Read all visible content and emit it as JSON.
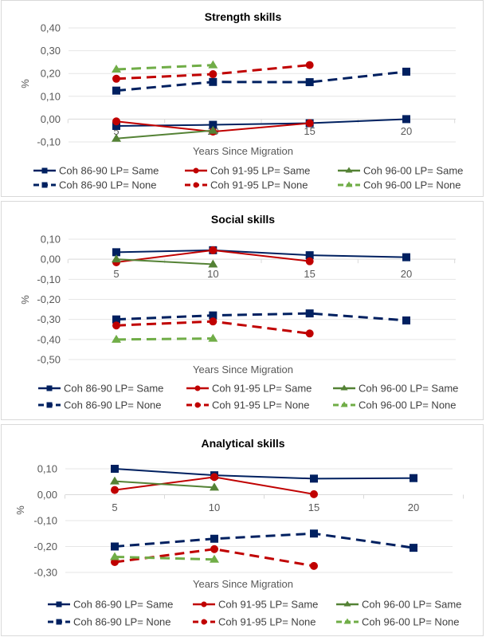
{
  "colors": {
    "coh86": "#002060",
    "coh91": "#C00000",
    "coh96_same": "#548235",
    "coh96_none": "#70AD47",
    "grid": "#E6E6E6",
    "tick_text": "#595959"
  },
  "chart_data": [
    {
      "type": "line",
      "title": "Strength skills",
      "xlabel": "Years Since Migration",
      "ylabel": "%",
      "x": [
        5,
        10,
        15,
        20
      ],
      "x_tick_labels": [
        "5",
        "10",
        "15",
        "20"
      ],
      "y_tick_labels": [
        "0,40",
        "0,30",
        "0,20",
        "0,10",
        "0,00",
        "-0,10"
      ],
      "y_ticks": [
        0.4,
        0.3,
        0.2,
        0.1,
        0.0,
        -0.1
      ],
      "ylim": [
        -0.1,
        0.4
      ],
      "grid": true,
      "legend": "bottom",
      "series": [
        {
          "name": "Coh 86-90 LP= Same",
          "color_key": "coh86",
          "dash": false,
          "marker": "square",
          "values": [
            -0.03,
            -0.025,
            -0.018,
            0.0
          ]
        },
        {
          "name": "Coh 91-95 LP= Same",
          "color_key": "coh91",
          "dash": false,
          "marker": "circle",
          "values": [
            -0.01,
            -0.055,
            -0.018,
            null
          ]
        },
        {
          "name": "Coh 96-00 LP= Same",
          "color_key": "coh96_same",
          "dash": false,
          "marker": "triangle",
          "values": [
            -0.085,
            -0.05,
            null,
            null
          ]
        },
        {
          "name": "Coh 86-90 LP= None",
          "color_key": "coh86",
          "dash": true,
          "marker": "square",
          "values": [
            0.125,
            0.163,
            0.162,
            0.208
          ]
        },
        {
          "name": "Coh 91-95 LP= None",
          "color_key": "coh91",
          "dash": true,
          "marker": "circle",
          "values": [
            0.177,
            0.197,
            0.237,
            null
          ]
        },
        {
          "name": "Coh 96-00 LP= None",
          "color_key": "coh96_none",
          "dash": true,
          "marker": "triangle",
          "values": [
            0.218,
            0.237,
            null,
            null
          ]
        }
      ]
    },
    {
      "type": "line",
      "title": "Social skills",
      "xlabel": "Years Since Migration",
      "ylabel": "%",
      "x": [
        5,
        10,
        15,
        20
      ],
      "x_tick_labels": [
        "5",
        "10",
        "15",
        "20"
      ],
      "y_tick_labels": [
        "0,10",
        "0,00",
        "-0,10",
        "-0,20",
        "-0,30",
        "-0,40",
        "-0,50"
      ],
      "y_ticks": [
        0.1,
        0.0,
        -0.1,
        -0.2,
        -0.3,
        -0.4,
        -0.5
      ],
      "ylim": [
        -0.5,
        0.1
      ],
      "grid": true,
      "legend": "bottom",
      "series": [
        {
          "name": "Coh 86-90 LP= Same",
          "color_key": "coh86",
          "dash": false,
          "marker": "square",
          "values": [
            0.035,
            0.045,
            0.02,
            0.01
          ]
        },
        {
          "name": "Coh 91-95 LP= Same",
          "color_key": "coh91",
          "dash": false,
          "marker": "circle",
          "values": [
            -0.015,
            0.045,
            -0.01,
            null
          ]
        },
        {
          "name": "Coh 96-00 LP= Same",
          "color_key": "coh96_same",
          "dash": false,
          "marker": "triangle",
          "values": [
            0.0,
            -0.025,
            null,
            null
          ]
        },
        {
          "name": "Coh 86-90 LP= None",
          "color_key": "coh86",
          "dash": true,
          "marker": "square",
          "values": [
            -0.3,
            -0.28,
            -0.27,
            -0.305
          ]
        },
        {
          "name": "Coh 91-95 LP= None",
          "color_key": "coh91",
          "dash": true,
          "marker": "circle",
          "values": [
            -0.33,
            -0.31,
            -0.37,
            null
          ]
        },
        {
          "name": "Coh 96-00 LP= None",
          "color_key": "coh96_none",
          "dash": true,
          "marker": "triangle",
          "values": [
            -0.4,
            -0.395,
            null,
            null
          ]
        }
      ]
    },
    {
      "type": "line",
      "title": "Analytical skills",
      "xlabel": "Years Since Migration",
      "ylabel": "%",
      "x": [
        5,
        10,
        15,
        20
      ],
      "x_tick_labels": [
        "5",
        "10",
        "15",
        "20"
      ],
      "y_tick_labels": [
        "0,10",
        "0,00",
        "-0,10",
        "-0,20",
        "-0,30"
      ],
      "y_ticks": [
        0.1,
        0.0,
        -0.1,
        -0.2,
        -0.3
      ],
      "ylim": [
        -0.3,
        0.1
      ],
      "grid": true,
      "legend": "bottom",
      "series": [
        {
          "name": "Coh 86-90 LP= Same",
          "color_key": "coh86",
          "dash": false,
          "marker": "square",
          "values": [
            0.1,
            0.075,
            0.062,
            0.064
          ]
        },
        {
          "name": "Coh 91-95 LP= Same",
          "color_key": "coh91",
          "dash": false,
          "marker": "circle",
          "values": [
            0.018,
            0.068,
            0.002,
            null
          ]
        },
        {
          "name": "Coh 96-00 LP= Same",
          "color_key": "coh96_same",
          "dash": false,
          "marker": "triangle",
          "values": [
            0.052,
            0.028,
            null,
            null
          ]
        },
        {
          "name": "Coh 86-90 LP= None",
          "color_key": "coh86",
          "dash": true,
          "marker": "square",
          "values": [
            -0.2,
            -0.17,
            -0.15,
            -0.205
          ]
        },
        {
          "name": "Coh 91-95 LP= None",
          "color_key": "coh91",
          "dash": true,
          "marker": "circle",
          "values": [
            -0.26,
            -0.21,
            -0.275,
            null
          ]
        },
        {
          "name": "Coh 96-00 LP= None",
          "color_key": "coh96_none",
          "dash": true,
          "marker": "triangle",
          "values": [
            -0.24,
            -0.25,
            null,
            null
          ]
        }
      ]
    }
  ]
}
